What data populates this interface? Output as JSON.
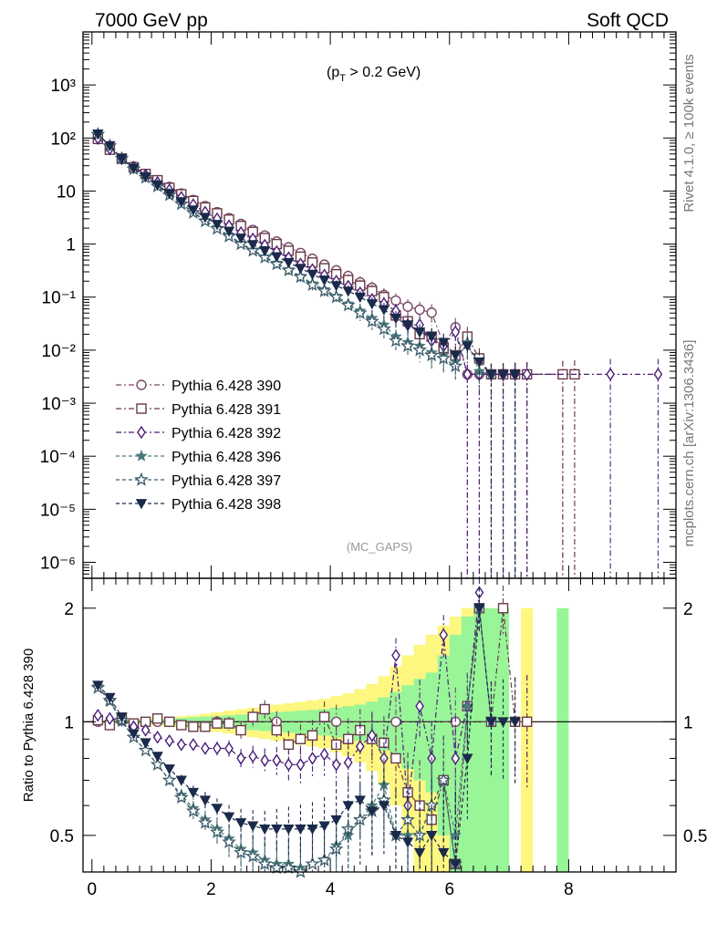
{
  "header": {
    "energy_label": "7000 GeV pp",
    "category_label": "Soft QCD",
    "cut_label_prefix": "(p",
    "cut_label_sub": "T",
    "cut_label_suffix": " > 0.2 GeV)",
    "analysis_tag": "(MC_GAPS)",
    "side_label_top": "Rivet 4.1.0, ≥ 100k events",
    "side_label_bottom": "mcplots.cern.ch [arXiv:1306.3436]"
  },
  "chart_data": [
    {
      "type": "line",
      "title": "",
      "xlabel": "",
      "ylabel": "",
      "yscale": "log",
      "xlim": [
        -0.15,
        9.8
      ],
      "ylim": [
        5e-07,
        10000.0
      ],
      "ytick_labels": [
        "10⁻⁶",
        "10⁻⁵",
        "10⁻⁴",
        "10⁻³",
        "10⁻²",
        "10⁻¹",
        "1",
        "10",
        "10²",
        "10³"
      ],
      "legend_position": "lower-left",
      "series": [
        {
          "name": "Pythia 6.428 390",
          "color": "#7a4a6a",
          "marker": "circle-open",
          "x": [
            0.1,
            0.3,
            0.5,
            0.7,
            0.9,
            1.1,
            1.3,
            1.5,
            1.7,
            1.9,
            2.1,
            2.3,
            2.5,
            2.7,
            2.9,
            3.1,
            3.3,
            3.5,
            3.7,
            3.9,
            4.1,
            4.3,
            4.5,
            4.7,
            4.9,
            5.1,
            5.3,
            5.5,
            5.7,
            5.9,
            6.1,
            6.3,
            6.5,
            6.7,
            6.9,
            7.1,
            7.3,
            7.9,
            8.1
          ],
          "y": [
            95,
            62,
            40,
            29,
            21,
            16,
            12,
            9,
            6.8,
            5.2,
            4.0,
            3.1,
            2.4,
            1.85,
            1.45,
            1.12,
            0.87,
            0.68,
            0.53,
            0.41,
            0.32,
            0.25,
            0.19,
            0.15,
            0.11,
            0.086,
            0.066,
            0.058,
            0.051,
            0.013,
            0.027,
            0.0035,
            0.0035,
            0.0035,
            0.0035,
            0.0035,
            0.0035,
            0.0035,
            0.0035
          ]
        },
        {
          "name": "Pythia 6.428 391",
          "color": "#6a3a4a",
          "marker": "square-open",
          "x": [
            0.1,
            0.3,
            0.5,
            0.7,
            0.9,
            1.1,
            1.3,
            1.5,
            1.7,
            1.9,
            2.1,
            2.3,
            2.5,
            2.7,
            2.9,
            3.1,
            3.3,
            3.5,
            3.7,
            3.9,
            4.1,
            4.3,
            4.5,
            4.7,
            4.9,
            5.1,
            5.3,
            5.5,
            5.7,
            5.9,
            6.1,
            6.3,
            6.5,
            6.7,
            6.9,
            7.1,
            7.3,
            7.9,
            8.1
          ],
          "y": [
            96,
            60,
            41,
            28,
            21,
            16,
            11.5,
            8.7,
            6.5,
            4.9,
            3.8,
            2.9,
            2.2,
            1.7,
            1.3,
            1.0,
            0.75,
            0.58,
            0.45,
            0.35,
            0.27,
            0.21,
            0.165,
            0.13,
            0.1,
            0.045,
            0.035,
            0.02,
            0.018,
            0.011,
            0.008,
            0.018,
            0.007,
            0.0035,
            0.0035,
            0.0035,
            0.0035,
            0.0035,
            0.0035
          ]
        },
        {
          "name": "Pythia 6.428 392",
          "color": "#4a1f7a",
          "marker": "diamond-open",
          "x": [
            0.1,
            0.3,
            0.5,
            0.7,
            0.9,
            1.1,
            1.3,
            1.5,
            1.7,
            1.9,
            2.1,
            2.3,
            2.5,
            2.7,
            2.9,
            3.1,
            3.3,
            3.5,
            3.7,
            3.9,
            4.1,
            4.3,
            4.5,
            4.7,
            4.9,
            5.1,
            5.3,
            5.5,
            5.7,
            5.9,
            6.1,
            6.3,
            6.5,
            6.7,
            6.9,
            7.1,
            7.3,
            8.7,
            9.5
          ],
          "y": [
            99,
            63,
            41,
            28,
            20,
            14.5,
            10.5,
            7.6,
            5.5,
            4.0,
            3.0,
            2.2,
            1.65,
            1.25,
            0.95,
            0.72,
            0.55,
            0.42,
            0.33,
            0.26,
            0.2,
            0.16,
            0.12,
            0.09,
            0.075,
            0.055,
            0.03,
            0.03,
            0.015,
            0.012,
            0.022,
            0.0035,
            0.0035,
            0.0035,
            0.0035,
            0.0035,
            0.0035,
            0.0035,
            0.0035
          ]
        },
        {
          "name": "Pythia 6.428 396",
          "color": "#4a7a7a",
          "marker": "star-filled",
          "x": [
            0.1,
            0.3,
            0.5,
            0.7,
            0.9,
            1.1,
            1.3,
            1.5,
            1.7,
            1.9,
            2.1,
            2.3,
            2.5,
            2.7,
            2.9,
            3.1,
            3.3,
            3.5,
            3.7,
            3.9,
            4.1,
            4.3,
            4.5,
            4.7,
            4.9,
            5.1,
            5.3,
            5.5,
            5.7,
            5.9,
            6.1,
            6.3,
            6.5,
            6.7
          ],
          "y": [
            118,
            70,
            40,
            26,
            18,
            12.5,
            8.5,
            5.8,
            4.0,
            2.8,
            2.0,
            1.45,
            1.05,
            0.78,
            0.58,
            0.44,
            0.33,
            0.25,
            0.18,
            0.14,
            0.105,
            0.075,
            0.055,
            0.04,
            0.03,
            0.018,
            0.014,
            0.012,
            0.009,
            0.008,
            0.006,
            0.014,
            0.004,
            0.0035
          ]
        },
        {
          "name": "Pythia 6.428 397",
          "color": "#3a5a6a",
          "marker": "star-open",
          "x": [
            0.1,
            0.3,
            0.5,
            0.7,
            0.9,
            1.1,
            1.3,
            1.5,
            1.7,
            1.9,
            2.1,
            2.3,
            2.5,
            2.7,
            2.9,
            3.1,
            3.3,
            3.5,
            3.7,
            3.9,
            4.1,
            4.3,
            4.5,
            4.7,
            4.9,
            5.1,
            5.3,
            5.5,
            5.7,
            5.9,
            6.1
          ],
          "y": [
            117,
            71,
            41,
            26,
            18,
            12.3,
            8.4,
            5.7,
            3.9,
            2.7,
            1.95,
            1.4,
            1.0,
            0.75,
            0.56,
            0.42,
            0.32,
            0.24,
            0.17,
            0.13,
            0.1,
            0.07,
            0.05,
            0.035,
            0.025,
            0.015,
            0.012,
            0.01,
            0.008,
            0.007,
            0.005
          ]
        },
        {
          "name": "Pythia 6.428 398",
          "color": "#1a2a4a",
          "marker": "triangle-down-filled",
          "x": [
            0.1,
            0.3,
            0.5,
            0.7,
            0.9,
            1.1,
            1.3,
            1.5,
            1.7,
            1.9,
            2.1,
            2.3,
            2.5,
            2.7,
            2.9,
            3.1,
            3.3,
            3.5,
            3.7,
            3.9,
            4.1,
            4.3,
            4.5,
            4.7,
            4.9,
            5.1,
            5.3,
            5.5,
            5.7,
            5.9,
            6.1,
            6.3,
            6.5,
            6.7,
            6.9,
            7.1
          ],
          "y": [
            119,
            72,
            41,
            27,
            18.5,
            13,
            9,
            6.3,
            4.4,
            3.2,
            2.35,
            1.75,
            1.3,
            0.98,
            0.75,
            0.58,
            0.45,
            0.35,
            0.27,
            0.21,
            0.165,
            0.13,
            0.1,
            0.075,
            0.058,
            0.04,
            0.03,
            0.022,
            0.018,
            0.014,
            0.008,
            0.012,
            0.006,
            0.0035,
            0.0035,
            0.0035
          ]
        }
      ]
    },
    {
      "type": "line",
      "title": "",
      "xlabel": "",
      "ylabel": "Ratio to Pythia 6.428 390",
      "yscale": "log",
      "xlim": [
        -0.15,
        9.8
      ],
      "ylim": [
        0.4,
        2.4
      ],
      "xticks": [
        0,
        2,
        4,
        6,
        8
      ],
      "yticks": [
        0.5,
        1,
        2
      ],
      "reference_line": 1,
      "bands": {
        "x_edges": [
          0,
          0.2,
          0.4,
          0.6,
          0.8,
          1.0,
          1.2,
          1.4,
          1.6,
          1.8,
          2.0,
          2.2,
          2.4,
          2.6,
          2.8,
          3.0,
          3.2,
          3.4,
          3.6,
          3.8,
          4.0,
          4.2,
          4.4,
          4.6,
          4.8,
          5.0,
          5.2,
          5.4,
          5.6,
          5.8,
          6.0,
          6.2,
          6.4,
          6.6,
          6.8,
          7.0,
          7.2,
          7.4,
          7.8,
          8.0
        ],
        "green_halfwidth": [
          0.01,
          0.01,
          0.01,
          0.012,
          0.014,
          0.016,
          0.02,
          0.024,
          0.028,
          0.032,
          0.036,
          0.04,
          0.045,
          0.05,
          0.055,
          0.06,
          0.065,
          0.07,
          0.075,
          0.08,
          0.09,
          0.1,
          0.11,
          0.13,
          0.16,
          0.2,
          0.25,
          0.3,
          0.35,
          0.5,
          0.7,
          0.9,
          1.0,
          1.0,
          1.0,
          0.0,
          0.0,
          0.0,
          1.0
        ],
        "yellow_halfwidth": [
          0.01,
          0.012,
          0.014,
          0.016,
          0.02,
          0.025,
          0.03,
          0.035,
          0.04,
          0.05,
          0.06,
          0.07,
          0.08,
          0.09,
          0.1,
          0.11,
          0.12,
          0.13,
          0.14,
          0.15,
          0.17,
          0.19,
          0.22,
          0.26,
          0.32,
          0.4,
          0.5,
          0.6,
          0.7,
          0.8,
          0.9,
          1.0,
          1.0,
          1.0,
          0.0,
          0.0,
          1.0,
          0.0,
          0.0,
          1.0
        ],
        "green_color": "#98f598",
        "yellow_color": "#fdf77f"
      },
      "series": [
        {
          "name": "Pythia 6.428 390",
          "color": "#7a4a6a",
          "marker": "circle-open",
          "x": [
            0.1,
            1.1,
            2.1,
            3.1,
            4.1,
            5.1,
            6.1,
            7.3
          ],
          "y": [
            1.0,
            1.0,
            1.0,
            1.0,
            1.0,
            1.0,
            1.0,
            1.0
          ]
        },
        {
          "name": "Pythia 6.428 391",
          "color": "#6a3a4a",
          "marker": "square-open",
          "x": [
            0.1,
            0.3,
            0.5,
            0.7,
            0.9,
            1.1,
            1.3,
            1.5,
            1.7,
            1.9,
            2.1,
            2.3,
            2.5,
            2.7,
            2.9,
            3.1,
            3.3,
            3.5,
            3.7,
            3.9,
            4.1,
            4.3,
            4.5,
            4.7,
            4.9,
            5.1,
            5.3,
            5.5,
            5.7,
            5.9,
            6.1,
            6.3,
            6.5,
            6.7,
            6.9,
            7.1,
            7.3
          ],
          "y": [
            1.01,
            0.98,
            1.02,
            0.99,
            1.0,
            1.02,
            1.0,
            0.98,
            0.97,
            0.97,
            0.99,
            0.99,
            0.95,
            1.03,
            1.08,
            0.95,
            0.87,
            0.9,
            0.92,
            1.03,
            0.87,
            0.9,
            0.95,
            0.9,
            0.88,
            0.8,
            0.65,
            0.6,
            0.55,
            0.7,
            0.42,
            1.1,
            2.0,
            1.0,
            2.0,
            1.0,
            1.0
          ]
        },
        {
          "name": "Pythia 6.428 392",
          "color": "#4a1f7a",
          "marker": "diamond-open",
          "x": [
            0.1,
            0.3,
            0.5,
            0.7,
            0.9,
            1.1,
            1.3,
            1.5,
            1.7,
            1.9,
            2.1,
            2.3,
            2.5,
            2.7,
            2.9,
            3.1,
            3.3,
            3.5,
            3.7,
            3.9,
            4.1,
            4.3,
            4.5,
            4.7,
            4.9,
            5.1,
            5.3,
            5.5,
            5.7,
            5.9,
            6.1,
            6.3,
            6.5
          ],
          "y": [
            1.04,
            1.02,
            1.01,
            0.97,
            0.95,
            0.91,
            0.89,
            0.87,
            0.87,
            0.85,
            0.85,
            0.85,
            0.8,
            0.81,
            0.79,
            0.79,
            0.77,
            0.77,
            0.8,
            0.82,
            0.77,
            0.78,
            0.86,
            0.92,
            0.8,
            1.5,
            0.6,
            1.1,
            0.8,
            1.7,
            0.8,
            1.1,
            2.2
          ]
        },
        {
          "name": "Pythia 6.428 396",
          "color": "#4a7a7a",
          "marker": "star-filled",
          "x": [
            0.1,
            0.3,
            0.5,
            0.7,
            0.9,
            1.1,
            1.3,
            1.5,
            1.7,
            1.9,
            2.1,
            2.3,
            2.5,
            2.7,
            2.9,
            3.1,
            3.3,
            3.5,
            3.7,
            3.9,
            4.1,
            4.3,
            4.5,
            4.7,
            4.9,
            5.1,
            5.3,
            5.5,
            5.7,
            5.9,
            6.1,
            6.3,
            6.5,
            6.7
          ],
          "y": [
            1.24,
            1.13,
            1.0,
            0.91,
            0.84,
            0.77,
            0.7,
            0.64,
            0.59,
            0.55,
            0.52,
            0.49,
            0.46,
            0.45,
            0.43,
            0.42,
            0.42,
            0.41,
            0.42,
            0.43,
            0.47,
            0.5,
            0.55,
            0.6,
            0.68,
            0.5,
            0.5,
            0.5,
            0.6,
            0.7,
            0.5,
            1.1,
            2.0,
            1.0
          ]
        },
        {
          "name": "Pythia 6.428 397",
          "color": "#3a5a6a",
          "marker": "star-open",
          "x": [
            0.1,
            0.3,
            0.5,
            0.7,
            0.9,
            1.1,
            1.3,
            1.5,
            1.7,
            1.9,
            2.1,
            2.3,
            2.5,
            2.7,
            2.9,
            3.1,
            3.3,
            3.5,
            3.7,
            3.9,
            4.1,
            4.3,
            4.5,
            4.7,
            4.9,
            5.1,
            5.3,
            5.5,
            5.7,
            5.9,
            6.1
          ],
          "y": [
            1.23,
            1.14,
            1.01,
            0.91,
            0.84,
            0.77,
            0.7,
            0.63,
            0.58,
            0.54,
            0.51,
            0.48,
            0.45,
            0.44,
            0.42,
            0.41,
            0.41,
            0.4,
            0.42,
            0.43,
            0.46,
            0.52,
            0.55,
            0.58,
            0.62,
            0.5,
            0.55,
            0.5,
            0.6,
            0.7,
            0.42
          ]
        },
        {
          "name": "Pythia 6.428 398",
          "color": "#1a2a4a",
          "marker": "triangle-down-filled",
          "x": [
            0.1,
            0.3,
            0.5,
            0.7,
            0.9,
            1.1,
            1.3,
            1.5,
            1.7,
            1.9,
            2.1,
            2.3,
            2.5,
            2.7,
            2.9,
            3.1,
            3.3,
            3.5,
            3.7,
            3.9,
            4.1,
            4.3,
            4.5,
            4.7,
            4.9,
            5.1,
            5.3,
            5.5,
            5.7,
            5.9,
            6.1,
            6.3,
            6.5,
            6.7,
            6.9,
            7.1
          ],
          "y": [
            1.25,
            1.16,
            1.03,
            0.93,
            0.88,
            0.81,
            0.75,
            0.7,
            0.65,
            0.62,
            0.59,
            0.56,
            0.54,
            0.53,
            0.52,
            0.52,
            0.52,
            0.52,
            0.52,
            0.53,
            0.55,
            0.6,
            0.62,
            0.58,
            0.6,
            0.5,
            0.48,
            0.45,
            0.5,
            0.45,
            0.42,
            0.8,
            2.0,
            1.0,
            1.0,
            1.0
          ]
        }
      ]
    }
  ]
}
